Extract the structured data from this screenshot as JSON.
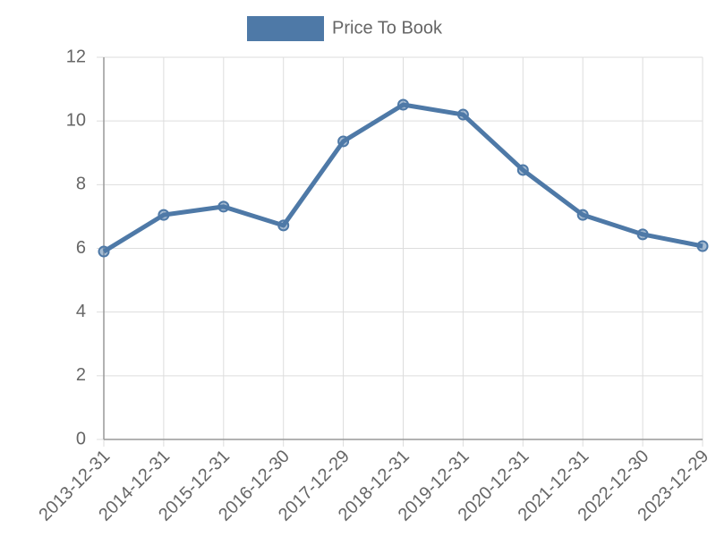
{
  "chart_data": {
    "type": "line",
    "categories": [
      "2013-12-31",
      "2014-12-31",
      "2015-12-31",
      "2016-12-30",
      "2017-12-29",
      "2018-12-31",
      "2019-12-31",
      "2020-12-31",
      "2021-12-31",
      "2022-12-30",
      "2023-12-29"
    ],
    "series": [
      {
        "name": "Price To Book",
        "color": "#4e79a7",
        "values": [
          5.9,
          7.05,
          7.31,
          6.72,
          9.36,
          10.51,
          10.2,
          8.46,
          7.05,
          6.44,
          6.07
        ]
      }
    ],
    "ylim": [
      0,
      12
    ],
    "yticks": [
      0,
      2,
      4,
      6,
      8,
      10,
      12
    ],
    "grid": true,
    "legend": "top"
  }
}
